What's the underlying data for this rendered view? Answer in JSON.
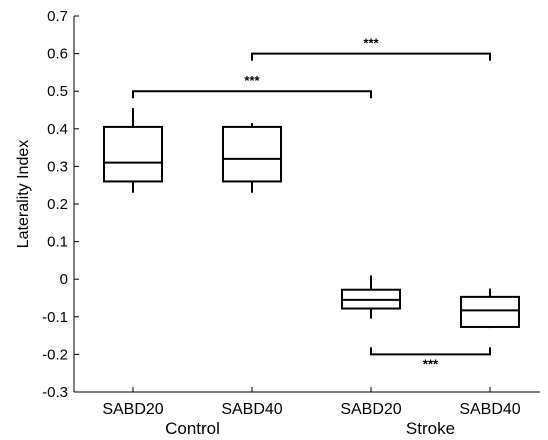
{
  "chart_data": {
    "type": "box",
    "ylabel": "Laterality Index",
    "xlabel": "",
    "ylim": [
      -0.3,
      0.7
    ],
    "yticks": [
      -0.3,
      -0.2,
      -0.1,
      0,
      0.1,
      0.2,
      0.3,
      0.4,
      0.5,
      0.6,
      0.7
    ],
    "ytick_labels": [
      "-0.3",
      "-0.2",
      "-0.1",
      "0",
      "0.1",
      "0.2",
      "0.3",
      "0.4",
      "0.5",
      "0.6",
      "0.7"
    ],
    "grid": false,
    "categories": [
      "SABD20",
      "SABD40",
      "SABD20",
      "SABD40"
    ],
    "groups": [
      {
        "label": "Control",
        "categories": [
          0,
          1
        ]
      },
      {
        "label": "Stroke",
        "categories": [
          2,
          3
        ]
      }
    ],
    "boxes": [
      {
        "category": "SABD20",
        "group": "Control",
        "whisker_low": 0.23,
        "q1": 0.26,
        "median": 0.31,
        "q3": 0.405,
        "whisker_high": 0.455
      },
      {
        "category": "SABD40",
        "group": "Control",
        "whisker_low": 0.23,
        "q1": 0.26,
        "median": 0.32,
        "q3": 0.405,
        "whisker_high": 0.415
      },
      {
        "category": "SABD20",
        "group": "Stroke",
        "whisker_low": -0.105,
        "q1": -0.078,
        "median": -0.055,
        "q3": -0.028,
        "whisker_high": 0.01
      },
      {
        "category": "SABD40",
        "group": "Stroke",
        "whisker_low": -0.13,
        "q1": -0.127,
        "median": -0.083,
        "q3": -0.047,
        "whisker_high": -0.025
      }
    ],
    "significance": [
      {
        "from": 0,
        "to": 2,
        "y": 0.5,
        "label": "***",
        "direction": "down"
      },
      {
        "from": 1,
        "to": 3,
        "y": 0.6,
        "label": "***",
        "direction": "down"
      },
      {
        "from": 2,
        "to": 3,
        "y": -0.2,
        "label": "***",
        "direction": "up"
      }
    ]
  }
}
